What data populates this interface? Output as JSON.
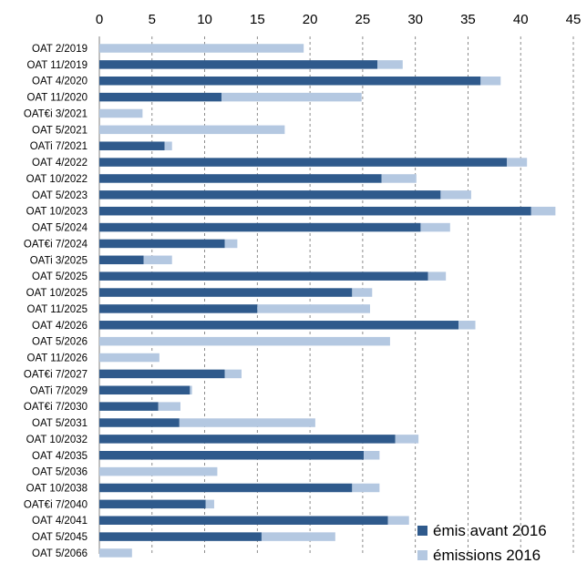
{
  "chart_data": {
    "type": "bar",
    "orientation": "horizontal",
    "stacked": true,
    "xlim": [
      0,
      45
    ],
    "x_ticks": [
      0,
      5,
      10,
      15,
      20,
      25,
      30,
      35,
      40,
      45
    ],
    "x_axis_position": "top",
    "grid": "vertical dashed",
    "legend_placement": "bottom-right",
    "categories": [
      "OAT 2/2019",
      "OAT 11/2019",
      "OAT 4/2020",
      "OAT 11/2020",
      "OAT€i 3/2021",
      "OAT 5/2021",
      "OATi 7/2021",
      "OAT 4/2022",
      "OAT 10/2022",
      "OAT 5/2023",
      "OAT 10/2023",
      "OAT 5/2024",
      "OAT€i 7/2024",
      "OATi 3/2025",
      "OAT 5/2025",
      "OAT 10/2025",
      "OAT 11/2025",
      "OAT 4/2026",
      "OAT 5/2026",
      "OAT 11/2026",
      "OAT€i 7/2027",
      "OATi 7/2029",
      "OAT€i 7/2030",
      "OAT 5/2031",
      "OAT 10/2032",
      "OAT 4/2035",
      "OAT 5/2036",
      "OAT 10/2038",
      "OAT€i 7/2040",
      "OAT 4/2041",
      "OAT 5/2045",
      "OAT 5/2066"
    ],
    "series": [
      {
        "name": "émis avant 2016",
        "color": "#2f5a8c",
        "values": [
          0,
          26.4,
          36.2,
          11.6,
          0,
          0,
          6.2,
          38.7,
          26.8,
          32.4,
          41.0,
          30.5,
          11.9,
          4.2,
          31.2,
          24.0,
          15.0,
          34.1,
          0,
          0,
          11.9,
          8.6,
          5.6,
          7.6,
          28.1,
          25.1,
          0,
          24.0,
          10.1,
          27.4,
          15.4,
          0
        ]
      },
      {
        "name": "émissions 2016",
        "color": "#b4c8e1",
        "values": [
          19.4,
          2.4,
          1.9,
          13.3,
          4.1,
          17.6,
          0.7,
          1.9,
          3.3,
          2.9,
          2.3,
          2.8,
          1.2,
          2.7,
          1.7,
          1.9,
          10.7,
          1.6,
          27.6,
          5.7,
          1.6,
          0.2,
          2.1,
          12.9,
          2.2,
          1.5,
          11.2,
          2.6,
          0.8,
          2.0,
          7.0,
          3.1
        ]
      }
    ]
  }
}
